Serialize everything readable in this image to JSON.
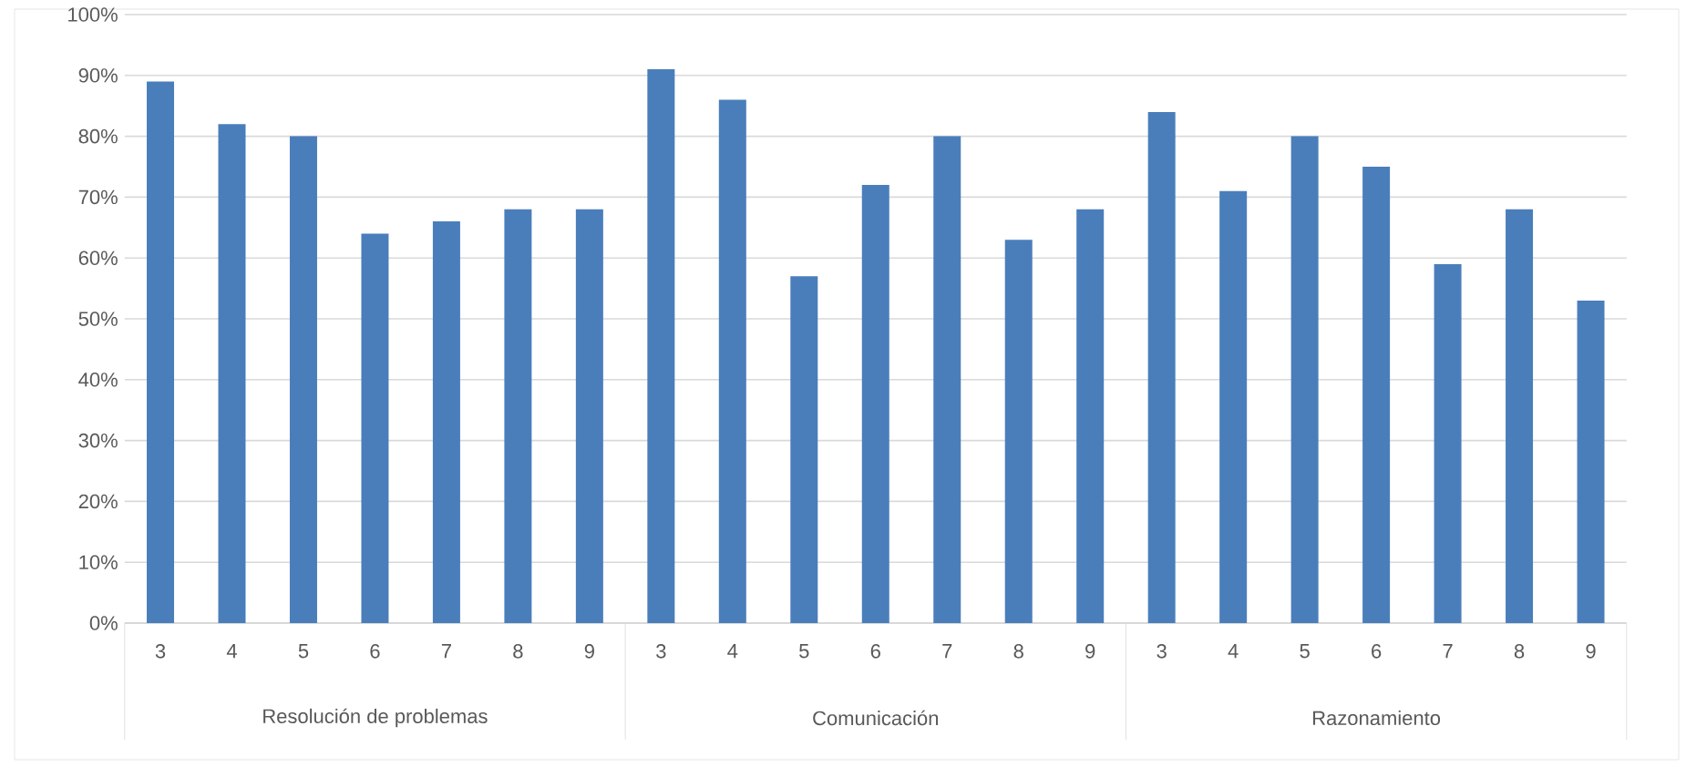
{
  "chart_data": {
    "type": "bar",
    "categories": [
      "3",
      "4",
      "5",
      "6",
      "7",
      "8",
      "9",
      "3",
      "4",
      "5",
      "6",
      "7",
      "8",
      "9",
      "3",
      "4",
      "5",
      "6",
      "7",
      "8",
      "9"
    ],
    "values": [
      89,
      82,
      80,
      64,
      66,
      68,
      68,
      91,
      86,
      57,
      72,
      80,
      63,
      68,
      84,
      71,
      80,
      75,
      59,
      68,
      53
    ],
    "color": "#4a7ebb",
    "ylim": [
      0,
      100
    ],
    "yticks": [
      {
        "value": 0,
        "label": "0%"
      },
      {
        "value": 10,
        "label": "10%"
      },
      {
        "value": 20,
        "label": "20%"
      },
      {
        "value": 30,
        "label": "30%"
      },
      {
        "value": 40,
        "label": "40%"
      },
      {
        "value": 50,
        "label": "50%"
      },
      {
        "value": 60,
        "label": "60%"
      },
      {
        "value": 70,
        "label": "70%"
      },
      {
        "value": 80,
        "label": "80%"
      },
      {
        "value": 90,
        "label": "90%"
      },
      {
        "value": 100,
        "label": "100%"
      }
    ],
    "grid": "y",
    "annotations": [
      "Resolución de problemas",
      "Comunicación",
      "Razonamiento"
    ]
  }
}
